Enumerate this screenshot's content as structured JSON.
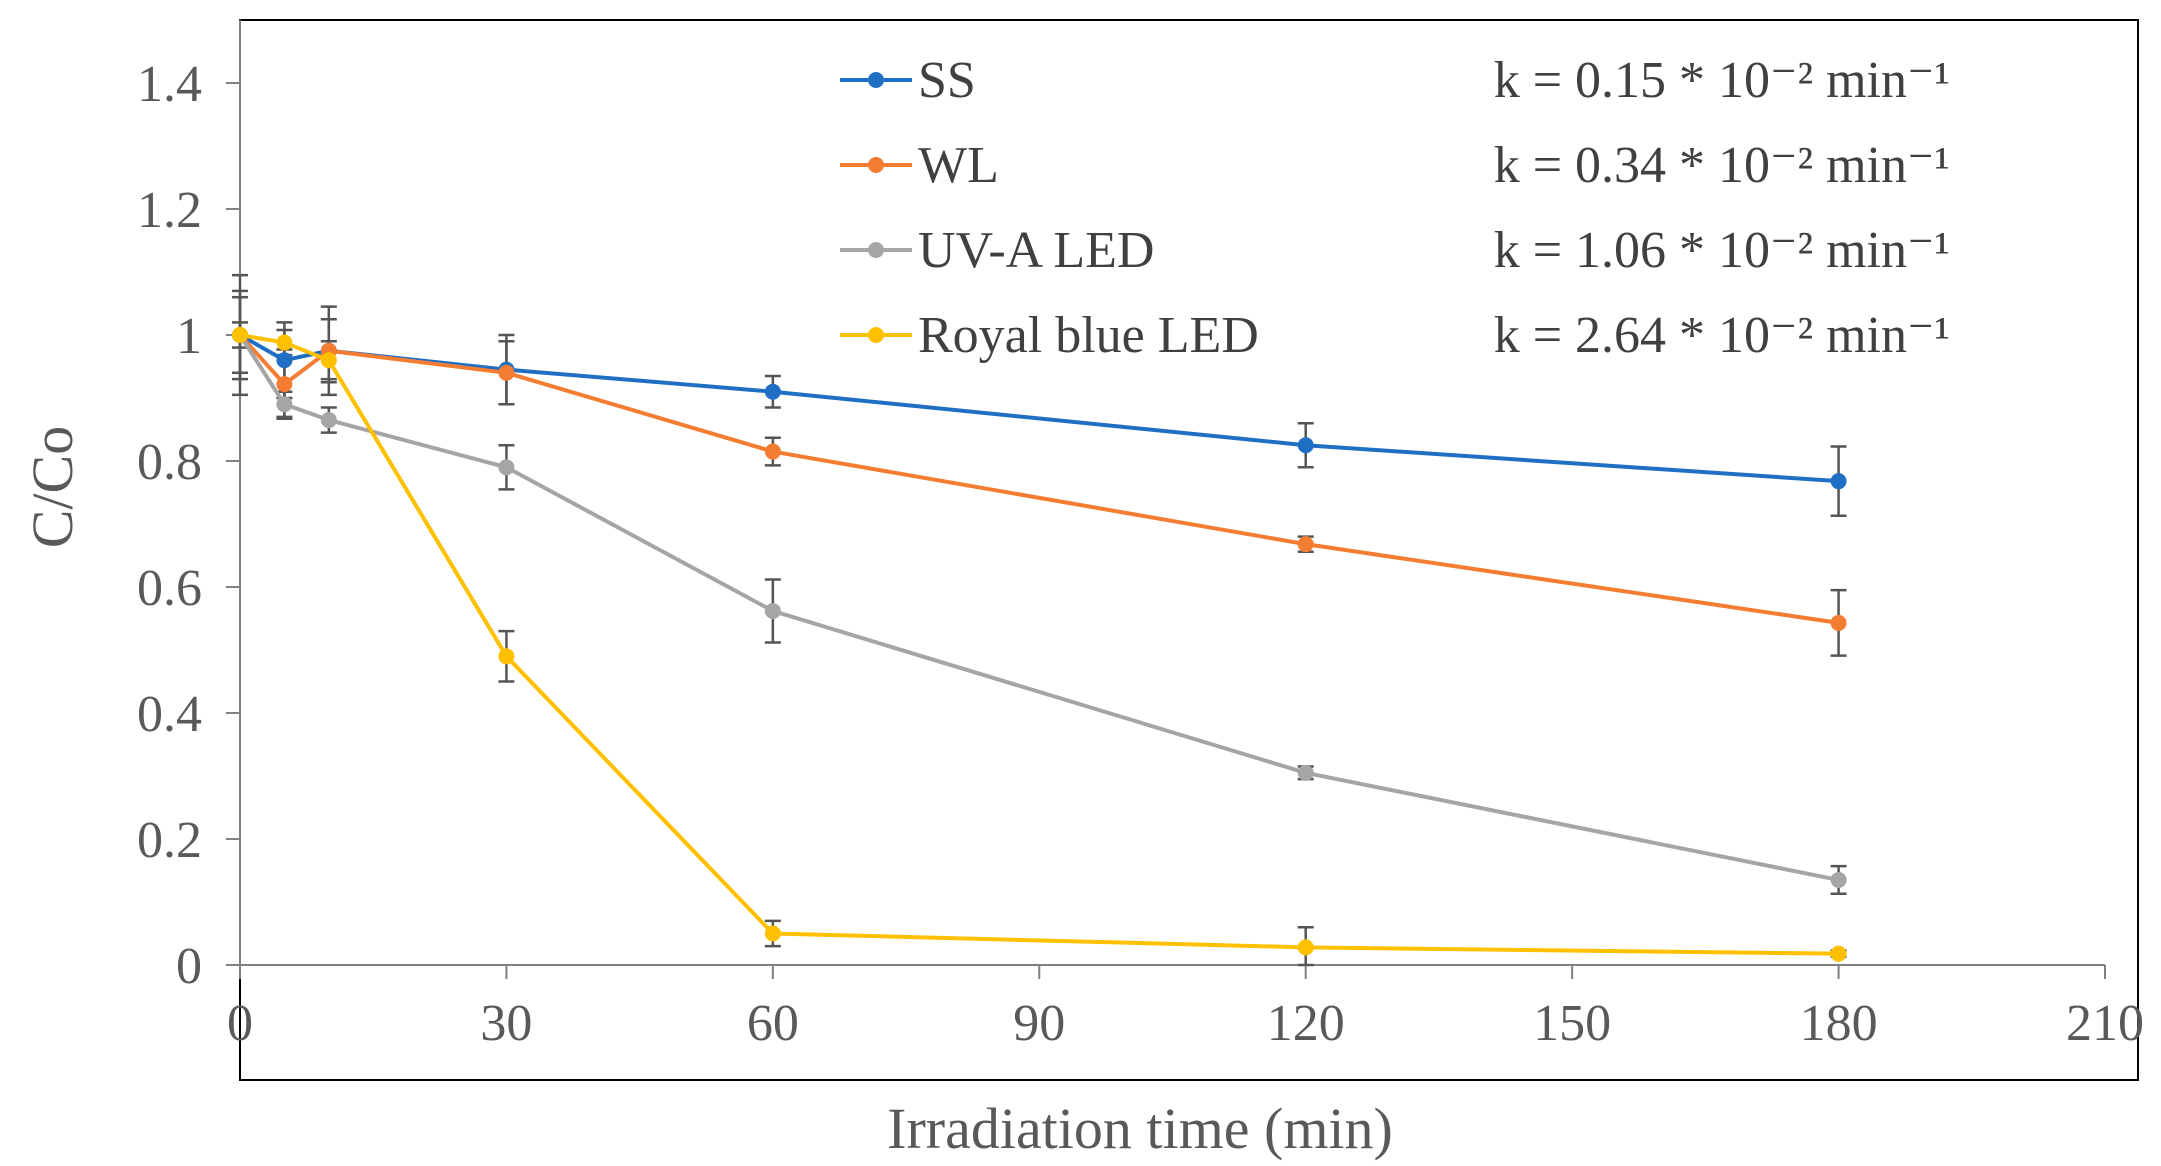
{
  "chart_data": {
    "type": "line",
    "title": "",
    "xlabel": "Irradiation time (min)",
    "ylabel": "C/Co",
    "xlim": [
      0,
      210
    ],
    "ylim": [
      0,
      1.5
    ],
    "x_ticks": [
      0,
      30,
      60,
      90,
      120,
      150,
      180,
      210
    ],
    "x_tick_labels": [
      "0",
      "30",
      "60",
      "90",
      "120",
      "150",
      "180",
      "210"
    ],
    "y_ticks": [
      0,
      0.2,
      0.4,
      0.6,
      0.8,
      1,
      1.2,
      1.4
    ],
    "y_tick_labels": [
      "0",
      "0.2",
      "0.4",
      "0.6",
      "0.8",
      "1",
      "1.2",
      "1.4"
    ],
    "grid": false,
    "legend_position": "top",
    "x": [
      0,
      5,
      10,
      30,
      60,
      120,
      180
    ],
    "series": [
      {
        "name": "SS",
        "color": "#1f6fc5",
        "rate": "k = 0.15 * 10⁻² min⁻¹",
        "values": [
          1.0,
          0.96,
          0.975,
          0.945,
          0.91,
          0.825,
          0.768
        ],
        "errors": [
          0.095,
          0.06,
          0.07,
          0.055,
          0.025,
          0.035,
          0.055
        ]
      },
      {
        "name": "WL",
        "color": "#f47d32",
        "rate": "k = 0.34 * 10⁻² min⁻¹",
        "values": [
          1.0,
          0.922,
          0.975,
          0.94,
          0.815,
          0.668,
          0.543
        ],
        "errors": [
          0.07,
          0.055,
          0.05,
          0.05,
          0.022,
          0.012,
          0.052
        ]
      },
      {
        "name": "UV-A LED",
        "color": "#a5a5a5",
        "rate": "k = 1.06 * 10⁻² min⁻¹",
        "values": [
          1.0,
          0.89,
          0.865,
          0.79,
          0.562,
          0.305,
          0.135
        ],
        "errors": [
          0.06,
          0.02,
          0.02,
          0.035,
          0.05,
          0.01,
          0.022
        ]
      },
      {
        "name": "Royal blue LED",
        "color": "#ffc000",
        "rate": "k = 2.64 * 10⁻² min⁻¹",
        "values": [
          1.0,
          0.988,
          0.96,
          0.49,
          0.05,
          0.028,
          0.018
        ],
        "errors": [
          0.02,
          0.02,
          0.03,
          0.04,
          0.02,
          0.032,
          0.005
        ]
      }
    ]
  }
}
